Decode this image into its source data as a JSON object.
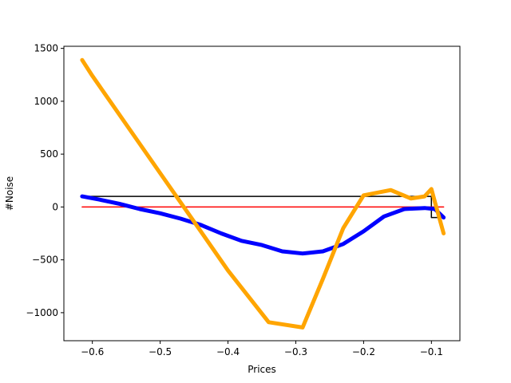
{
  "chart_data": {
    "type": "line",
    "title": "",
    "xlabel": "Prices",
    "ylabel": "#Noise",
    "xlim": [
      -0.642,
      -0.058
    ],
    "ylim": [
      -1265,
      1520
    ],
    "grid": false,
    "legend": "none",
    "x_ticks": [
      {
        "value": -0.6,
        "label": "−0.6"
      },
      {
        "value": -0.5,
        "label": "−0.5"
      },
      {
        "value": -0.4,
        "label": "−0.4"
      },
      {
        "value": -0.3,
        "label": "−0.3"
      },
      {
        "value": -0.2,
        "label": "−0.2"
      },
      {
        "value": -0.1,
        "label": "−0.1"
      }
    ],
    "y_ticks": [
      {
        "value": 1500,
        "label": "1500"
      },
      {
        "value": 1000,
        "label": "1000"
      },
      {
        "value": 500,
        "label": "500"
      },
      {
        "value": 0,
        "label": "0"
      },
      {
        "value": -500,
        "label": "−500"
      },
      {
        "value": -1000,
        "label": "−1000"
      }
    ],
    "series": [
      {
        "color": "#000000",
        "width": 1.5,
        "x": [
          -0.615,
          -0.1,
          -0.1,
          -0.09
        ],
        "y": [
          100,
          100,
          -100,
          -100
        ]
      },
      {
        "color": "#ff0000",
        "width": 1.5,
        "x": [
          -0.615,
          -0.082
        ],
        "y": [
          0,
          0
        ]
      },
      {
        "color": "#0000ff",
        "width": 5,
        "x": [
          -0.615,
          -0.59,
          -0.56,
          -0.53,
          -0.5,
          -0.47,
          -0.44,
          -0.41,
          -0.38,
          -0.35,
          -0.32,
          -0.29,
          -0.26,
          -0.23,
          -0.2,
          -0.17,
          -0.14,
          -0.11,
          -0.095,
          -0.082
        ],
        "y": [
          100,
          70,
          30,
          -20,
          -60,
          -110,
          -170,
          -250,
          -320,
          -360,
          -420,
          -440,
          -420,
          -350,
          -230,
          -90,
          -20,
          -10,
          -20,
          -100
        ]
      },
      {
        "color": "#ffa500",
        "width": 5,
        "x": [
          -0.615,
          -0.6,
          -0.55,
          -0.5,
          -0.45,
          -0.4,
          -0.34,
          -0.29,
          -0.26,
          -0.23,
          -0.2,
          -0.16,
          -0.13,
          -0.11,
          -0.1,
          -0.095,
          -0.082
        ],
        "y": [
          1390,
          1240,
          780,
          320,
          -140,
          -600,
          -1090,
          -1140,
          -680,
          -200,
          110,
          160,
          80,
          100,
          170,
          50,
          -250
        ]
      }
    ]
  }
}
